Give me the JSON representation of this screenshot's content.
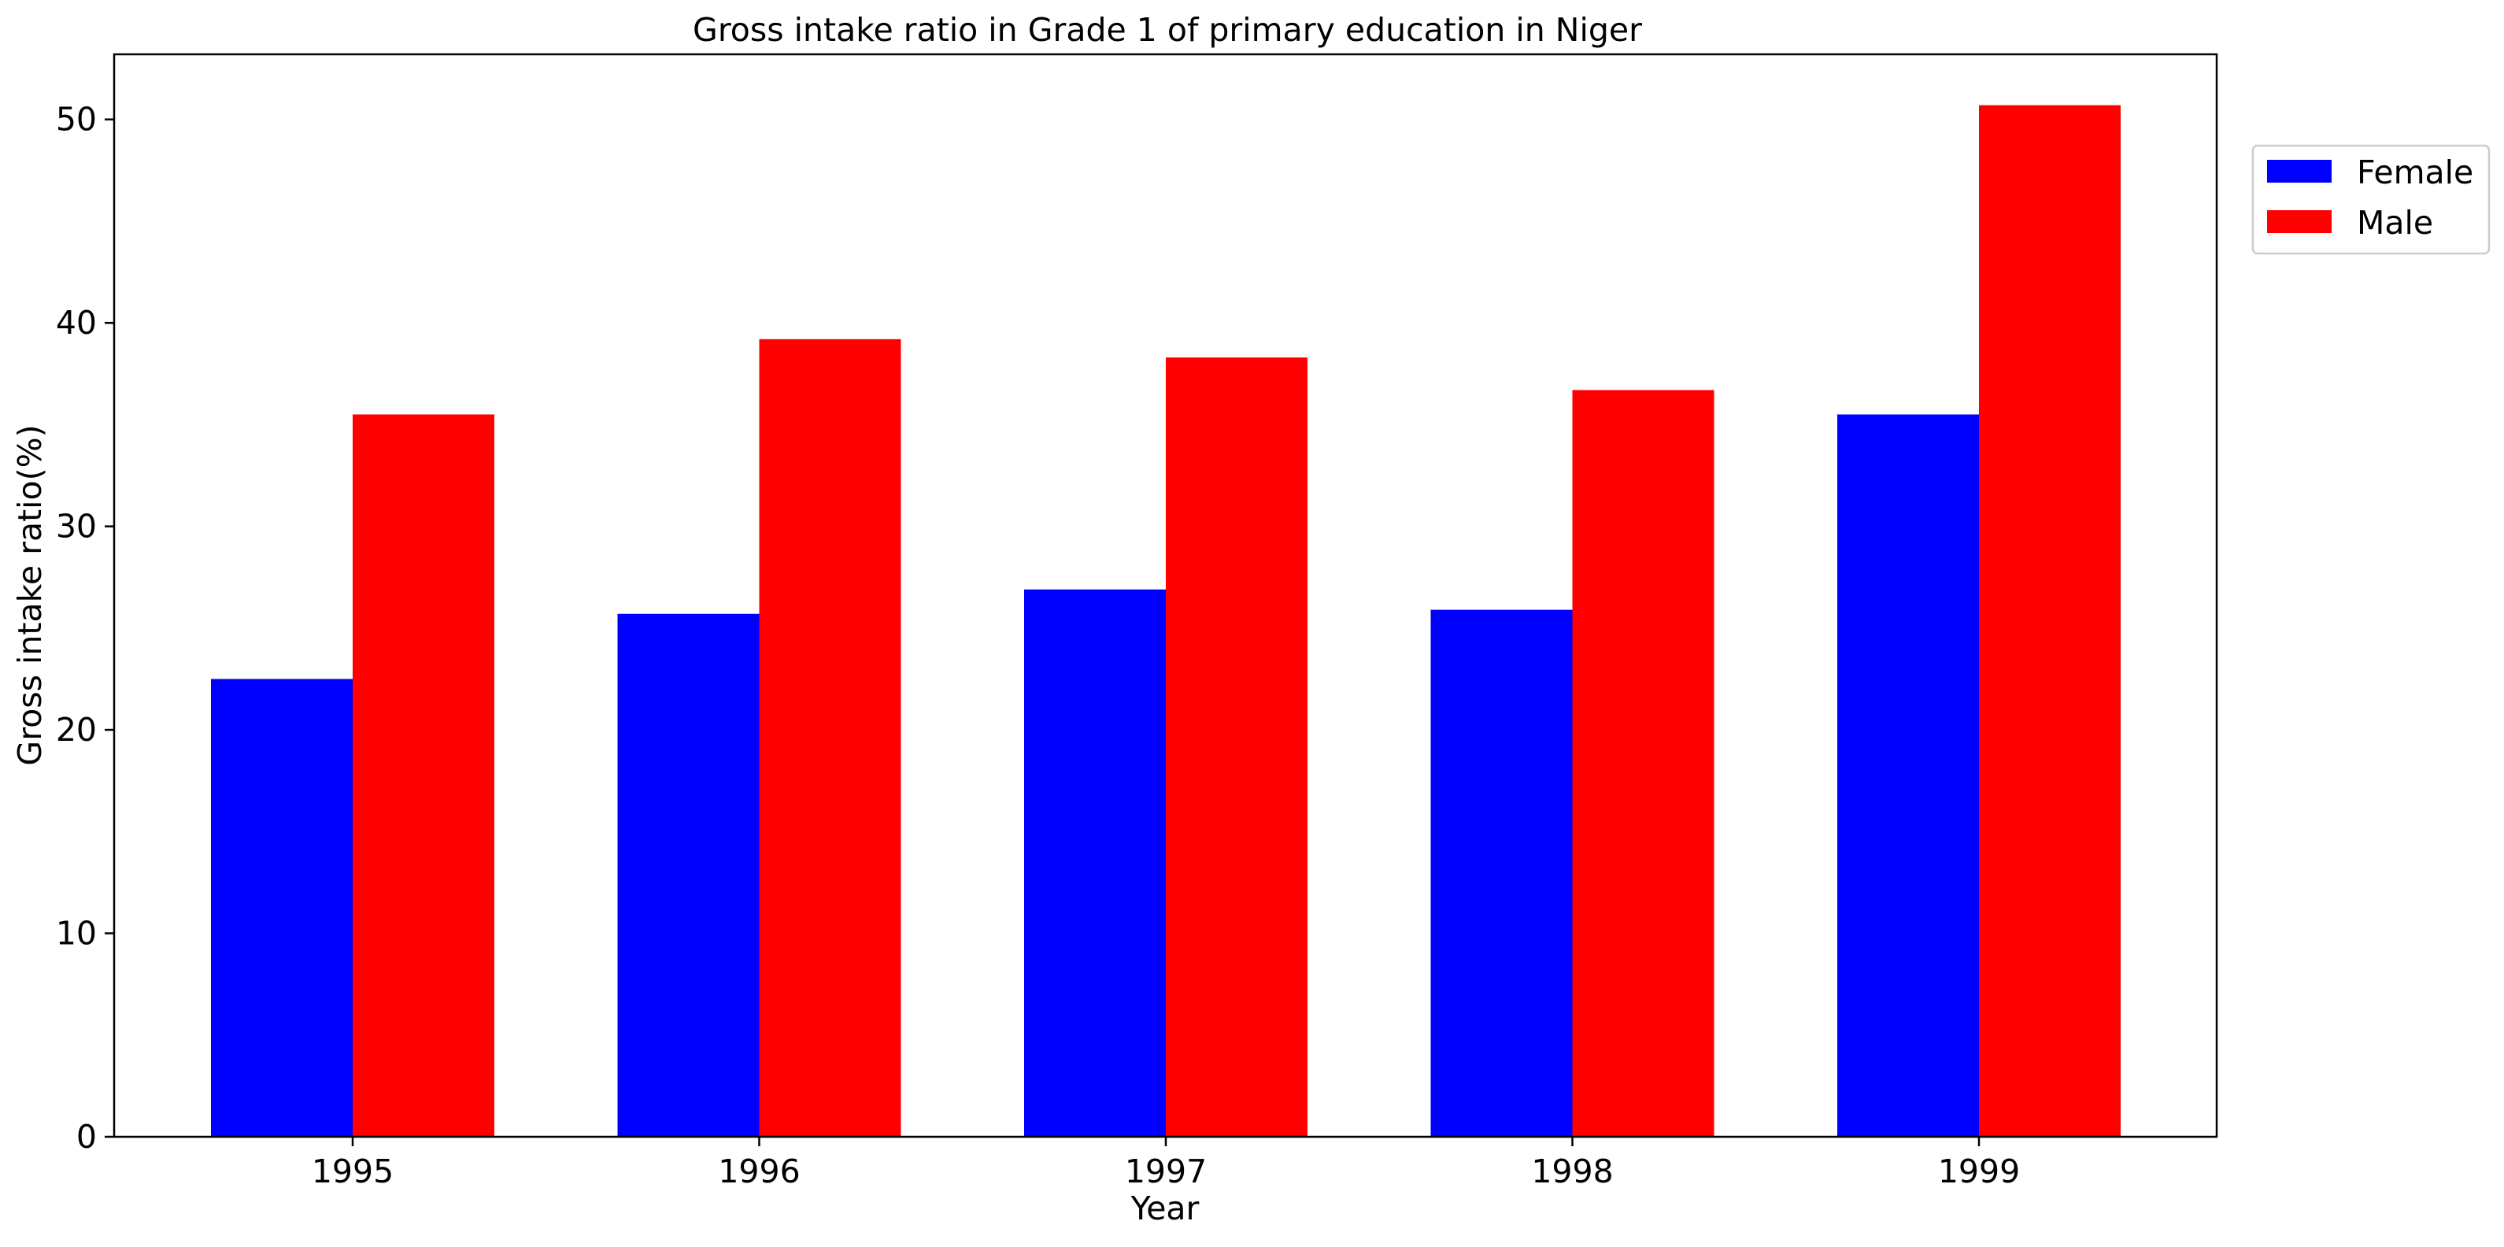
{
  "chart_data": {
    "type": "bar",
    "title": "Gross intake ratio in Grade 1 of primary education in Niger",
    "xlabel": "Year",
    "ylabel": "Gross intake ratio(%)",
    "categories": [
      "1995",
      "1996",
      "1997",
      "1998",
      "1999"
    ],
    "series": [
      {
        "name": "Female",
        "color": "#0000ff",
        "values": [
          22.5,
          25.7,
          26.9,
          25.9,
          35.5
        ]
      },
      {
        "name": "Male",
        "color": "#ff0000",
        "values": [
          35.5,
          39.2,
          38.3,
          36.7,
          50.7
        ]
      }
    ],
    "ylim": [
      0,
      53.2
    ],
    "yticks": [
      0,
      10,
      20,
      30,
      40,
      50
    ],
    "grid": false,
    "legend_position": "upper-right outside"
  }
}
